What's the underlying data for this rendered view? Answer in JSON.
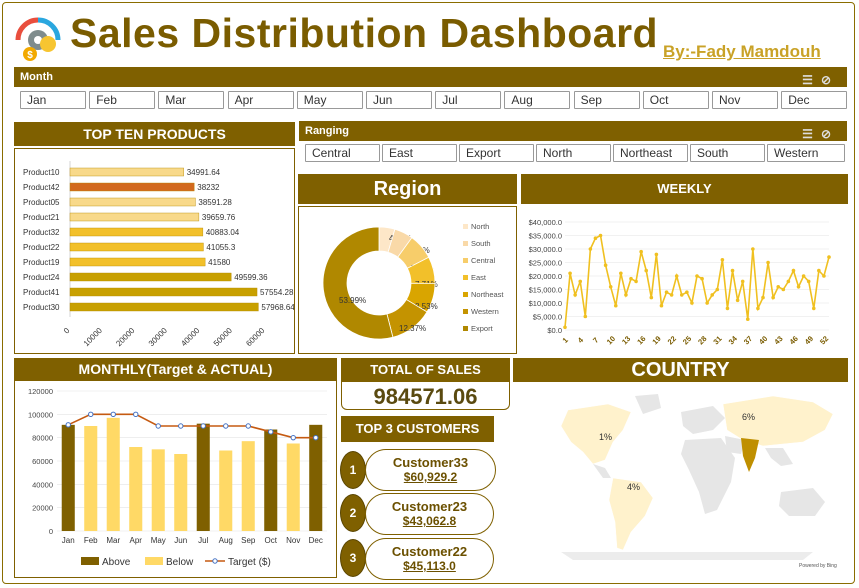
{
  "header": {
    "title": "Sales Distribution Dashboard",
    "byline": "By:-Fady Mamdouh",
    "logo_icon": "gear-dollar-icon"
  },
  "month_slicer": {
    "label": "Month",
    "items": [
      "Jan",
      "Feb",
      "Mar",
      "Apr",
      "May",
      "Jun",
      "Jul",
      "Aug",
      "Sep",
      "Oct",
      "Nov",
      "Dec"
    ]
  },
  "ranging_slicer": {
    "label": "Ranging",
    "items": [
      "Central",
      "East",
      "Export",
      "North",
      "Northeast",
      "South",
      "Western"
    ]
  },
  "top_products": {
    "title": "TOP TEN PRODUCTS",
    "chart_data": {
      "type": "bar",
      "orientation": "horizontal",
      "categories": [
        "Product10",
        "Product42",
        "Product05",
        "Product21",
        "Product32",
        "Product22",
        "Product19",
        "Product24",
        "Product41",
        "Product30"
      ],
      "values": [
        34991.64,
        38232,
        38591.28,
        39659.76,
        40883.04,
        41055.3,
        41580,
        49599.36,
        57554.28,
        57968.64
      ],
      "value_labels": [
        "34991.64",
        "38232",
        "38591.28",
        "39659.76",
        "40883.04",
        "41055.3",
        "41580",
        "49599.36",
        "57554.28",
        "57968.64"
      ],
      "xticks": [
        "0",
        "10000",
        "20000",
        "30000",
        "40000",
        "50000",
        "60000"
      ],
      "xlim": [
        0,
        60000
      ],
      "highlight_index": 1,
      "colors": {
        "bar": "#f2c02a",
        "light": "#f8d98a",
        "highlight": "#d2691e",
        "dark": "#c8a000"
      }
    }
  },
  "region": {
    "title": "Region",
    "chart_data": {
      "type": "pie",
      "donut": true,
      "categories": [
        "North",
        "South",
        "Central",
        "East",
        "Northeast",
        "Western",
        "Export"
      ],
      "values": [
        4.58,
        5.41,
        7.41,
        7.71,
        8.53,
        12.37,
        53.99
      ],
      "labels": [
        "4.58%",
        "5.41%",
        "7.41%",
        "7.71%",
        "8.53%",
        "12.37%",
        "53.99%"
      ],
      "colors": [
        "#fde7c8",
        "#f9d9a8",
        "#f7cd6a",
        "#f2c02a",
        "#d9a500",
        "#c49300",
        "#b08800"
      ],
      "legend": "right"
    }
  },
  "weekly": {
    "title": "WEEKLY",
    "chart_data": {
      "type": "line",
      "x": [
        1,
        2,
        3,
        4,
        5,
        6,
        7,
        8,
        9,
        10,
        11,
        12,
        13,
        14,
        15,
        16,
        17,
        18,
        19,
        20,
        21,
        22,
        23,
        24,
        25,
        26,
        27,
        28,
        29,
        30,
        31,
        32,
        33,
        34,
        35,
        36,
        37,
        38,
        39,
        40,
        41,
        42,
        43,
        44,
        45,
        46,
        47,
        48,
        49,
        50,
        51,
        52,
        53
      ],
      "y": [
        1000,
        21000,
        13000,
        18000,
        5000,
        30000,
        34000,
        35000,
        24000,
        16000,
        9000,
        21000,
        13000,
        19000,
        18000,
        29000,
        22000,
        12000,
        28000,
        9000,
        14000,
        13000,
        20000,
        13000,
        14000,
        10000,
        20000,
        19000,
        10000,
        13000,
        15000,
        26000,
        8000,
        22000,
        11000,
        18000,
        4000,
        30000,
        8000,
        12000,
        25000,
        12000,
        16000,
        15000,
        18000,
        22000,
        16000,
        20000,
        18000,
        8000,
        22000,
        20000,
        27000
      ],
      "xticks": [
        "1",
        "4",
        "7",
        "10",
        "13",
        "16",
        "19",
        "22",
        "25",
        "28",
        "31",
        "34",
        "37",
        "40",
        "43",
        "46",
        "49",
        "52"
      ],
      "yticks": [
        "$0.0",
        "$5,000.0",
        "$10,000.0",
        "$15,000.0",
        "$20,000.0",
        "$25,000.0",
        "$30,000.0",
        "$35,000.0",
        "$40,000.0"
      ],
      "ylim": [
        0,
        40000
      ],
      "color": "#f0c020",
      "grid": true
    }
  },
  "monthly": {
    "title": "MONTHLY(Target & ACTUAL)",
    "chart_data": {
      "type": "bar",
      "categories": [
        "Jan",
        "Feb",
        "Mar",
        "Apr",
        "May",
        "Jun",
        "Jul",
        "Aug",
        "Sep",
        "Oct",
        "Nov",
        "Dec"
      ],
      "series": [
        {
          "name": "Above",
          "values": [
            91000,
            0,
            0,
            0,
            0,
            0,
            92000,
            0,
            0,
            87000,
            0,
            91000
          ],
          "color": "#7f6000"
        },
        {
          "name": "Below",
          "values": [
            0,
            90000,
            97000,
            72000,
            70000,
            66000,
            0,
            69000,
            77000,
            0,
            75000,
            0
          ],
          "color": "#ffd966"
        },
        {
          "name": "Target ($)",
          "type": "line",
          "values": [
            91000,
            100000,
            100000,
            100000,
            90000,
            90000,
            90000,
            90000,
            90000,
            85000,
            80000,
            80000
          ],
          "color": "#c55a11"
        }
      ],
      "yticks": [
        "0",
        "20000",
        "40000",
        "60000",
        "80000",
        "100000",
        "120000"
      ],
      "ylim": [
        0,
        120000
      ],
      "legend": "bottom"
    }
  },
  "total_sales": {
    "title": "TOTAL OF SALES",
    "value": "984571.06"
  },
  "top_customers": {
    "title": "TOP 3 CUSTOMERS",
    "items": [
      {
        "rank": "1",
        "name": "Customer33",
        "value": "$60,929.2"
      },
      {
        "rank": "2",
        "name": "Customer23",
        "value": "$43,062.8"
      },
      {
        "rank": "3",
        "name": "Customer22",
        "value": "$45,113.0"
      }
    ]
  },
  "country": {
    "title": "COUNTRY",
    "labels": [
      "1%",
      "6%",
      "4%"
    ],
    "credit": "Powered by Bing"
  }
}
